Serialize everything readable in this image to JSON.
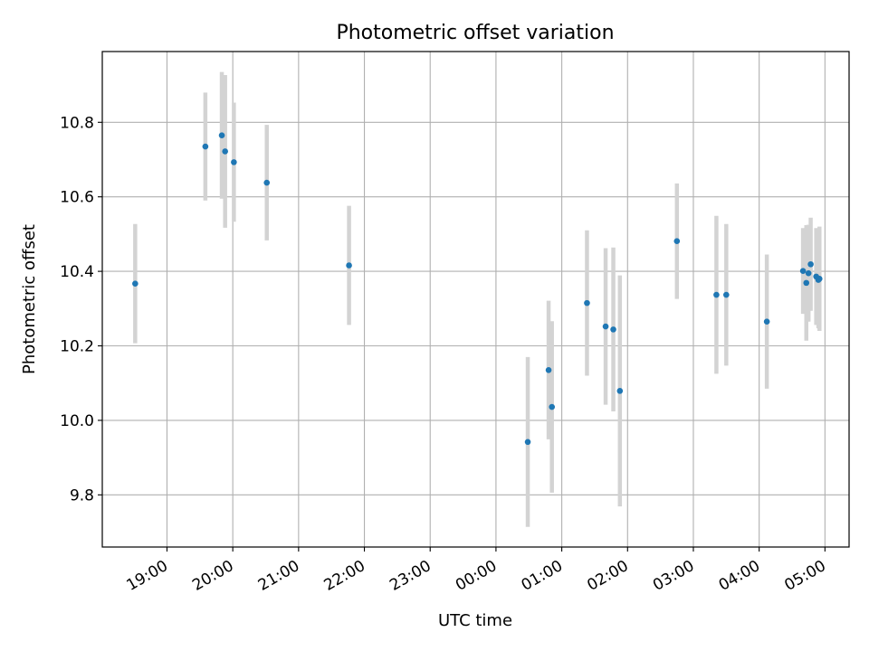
{
  "chart_data": {
    "type": "scatter",
    "title": "Photometric offset variation",
    "xlabel": "UTC time",
    "ylabel": "Photometric offset",
    "x_tick_labels": [
      "19:00",
      "20:00",
      "21:00",
      "22:00",
      "23:00",
      "00:00",
      "01:00",
      "02:00",
      "03:00",
      "04:00",
      "05:00"
    ],
    "y_tick_labels": [
      "9.8",
      "10.0",
      "10.2",
      "10.4",
      "10.6",
      "10.8"
    ],
    "y_ticks": [
      9.8,
      10.0,
      10.2,
      10.4,
      10.6,
      10.8
    ],
    "xlim": [
      "18:01",
      "05:22"
    ],
    "ylim": [
      9.66,
      10.99
    ],
    "grid": true,
    "series_color": "#1f77b4",
    "errorbar_color": "#d3d3d3",
    "points": [
      {
        "t": "18:31",
        "y": 10.367,
        "err": 0.16
      },
      {
        "t": "19:35",
        "y": 10.735,
        "err": 0.145
      },
      {
        "t": "19:50",
        "y": 10.765,
        "err": 0.17
      },
      {
        "t": "19:53",
        "y": 10.722,
        "err": 0.205
      },
      {
        "t": "20:01",
        "y": 10.693,
        "err": 0.16
      },
      {
        "t": "20:31",
        "y": 10.638,
        "err": 0.155
      },
      {
        "t": "21:46",
        "y": 10.416,
        "err": 0.16
      },
      {
        "t": "00:29",
        "y": 9.942,
        "err": 0.228
      },
      {
        "t": "00:48",
        "y": 10.135,
        "err": 0.186
      },
      {
        "t": "00:51",
        "y": 10.036,
        "err": 0.23
      },
      {
        "t": "01:23",
        "y": 10.315,
        "err": 0.195
      },
      {
        "t": "01:40",
        "y": 10.252,
        "err": 0.21
      },
      {
        "t": "01:47",
        "y": 10.244,
        "err": 0.22
      },
      {
        "t": "01:53",
        "y": 10.079,
        "err": 0.31
      },
      {
        "t": "02:45",
        "y": 10.481,
        "err": 0.155
      },
      {
        "t": "03:21",
        "y": 10.337,
        "err": 0.212
      },
      {
        "t": "03:30",
        "y": 10.337,
        "err": 0.19
      },
      {
        "t": "04:07",
        "y": 10.265,
        "err": 0.18
      },
      {
        "t": "04:40",
        "y": 10.401,
        "err": 0.115
      },
      {
        "t": "04:43",
        "y": 10.369,
        "err": 0.155
      },
      {
        "t": "04:45",
        "y": 10.395,
        "err": 0.13
      },
      {
        "t": "04:47",
        "y": 10.419,
        "err": 0.125
      },
      {
        "t": "04:52",
        "y": 10.386,
        "err": 0.13
      },
      {
        "t": "04:54",
        "y": 10.377,
        "err": 0.13
      },
      {
        "t": "04:55",
        "y": 10.38,
        "err": 0.14
      }
    ]
  }
}
